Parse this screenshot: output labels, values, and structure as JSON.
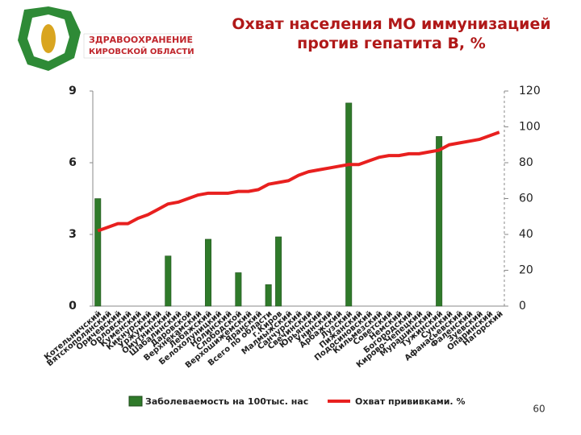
{
  "logo_text": [
    "ЗДРАВООХРАНЕНИЕ",
    "КИРОВСКОЙ ОБЛАСТИ"
  ],
  "page_number": "60",
  "chart_data": {
    "type": "combo",
    "title": "Охват населения МО иммунизацией против гепатита В, %",
    "categories": [
      "Котельничский",
      "Вятскополянский",
      "Оричевский",
      "Орловский",
      "Куменский",
      "Кикнурский",
      "Уржумский",
      "Омутнинский",
      "Шабалинский",
      "Даровской",
      "Верхнекамский",
      "Лебяжский",
      "Белохолуницкий",
      "Нолинский",
      "Слободской",
      "Верхошижемский",
      "Яранский",
      "Всего по области",
      "г.Киров",
      "Малмыжский",
      "Санчурский",
      "Свечинский",
      "Юрьянский",
      "Унинский",
      "Арбажский",
      "Лузский",
      "Пижанский",
      "Подосиновский",
      "Кильмезский",
      "Советский",
      "Немский",
      "Богородский",
      "Кирово-Чепецкий",
      "Мурашинский",
      "Тужинский",
      "Сунский",
      "Афанасьевский",
      "Фаленский",
      "Зуевский",
      "Опаринский",
      "Нагорский"
    ],
    "series": [
      {
        "name": "Заболеваемость на 100тыс. нас",
        "type": "bar",
        "axis": "y",
        "color": "#2f7a2a",
        "values": [
          4.5,
          0,
          0,
          0,
          0,
          0,
          0,
          2.1,
          0,
          0,
          0,
          2.8,
          0,
          0,
          1.4,
          0,
          0,
          0.9,
          2.9,
          0,
          0,
          0,
          0,
          0,
          0,
          8.5,
          0,
          0,
          0,
          0,
          0,
          0,
          0,
          0,
          7.1,
          0,
          0,
          0,
          0,
          0,
          0
        ]
      },
      {
        "name": "Охват прививками. %",
        "type": "line",
        "axis": "y2",
        "color": "#e8201f",
        "values": [
          42,
          44,
          46,
          46,
          49,
          51,
          54,
          57,
          58,
          60,
          62,
          63,
          63,
          63,
          64,
          64,
          65,
          68,
          69,
          70,
          73,
          75,
          76,
          77,
          78,
          79,
          79,
          81,
          83,
          84,
          84,
          85,
          85,
          86,
          87,
          90,
          91,
          92,
          93,
          95,
          97
        ]
      }
    ],
    "ylim": [
      0,
      9
    ],
    "yticks": [
      0,
      3,
      6,
      9
    ],
    "y2lim": [
      0,
      120
    ],
    "y2ticks": [
      0,
      20,
      40,
      60,
      80,
      100,
      120
    ],
    "grid": false
  }
}
